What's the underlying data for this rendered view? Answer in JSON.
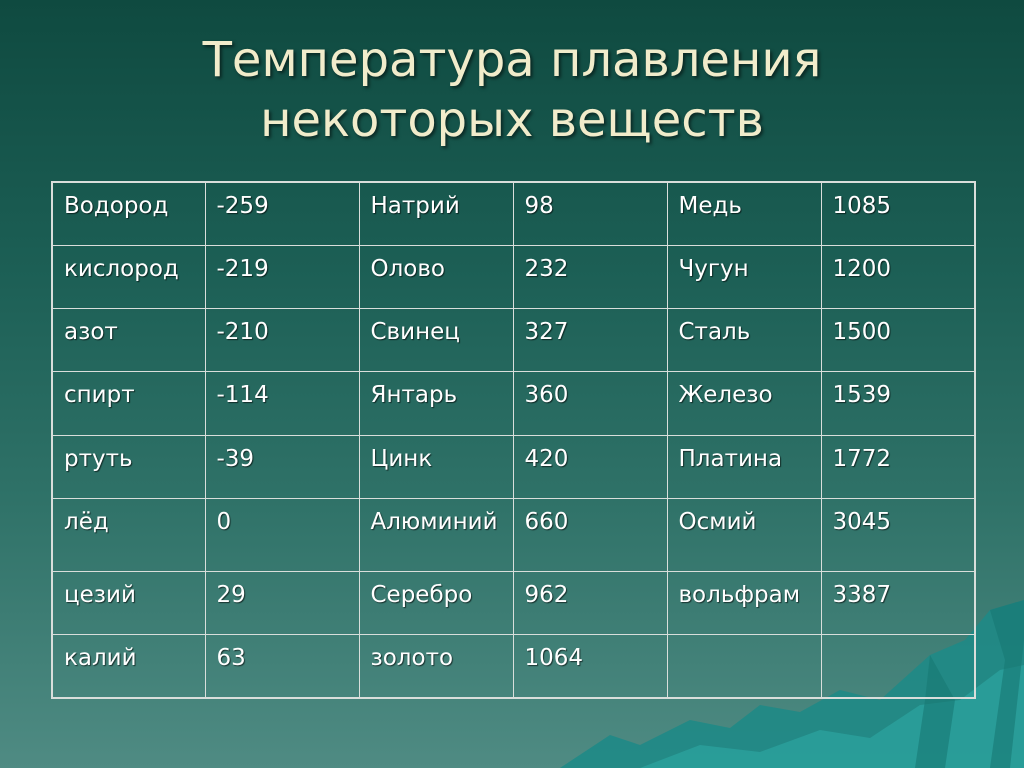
{
  "title": {
    "line1": "Температура плавления",
    "line2": "некоторых веществ"
  },
  "table": {
    "rows": [
      [
        "Водород",
        "-259",
        "Натрий",
        "98",
        "Медь",
        "1085"
      ],
      [
        "кислород",
        "-219",
        "Олово",
        "232",
        "Чугун",
        "1200"
      ],
      [
        "азот",
        "-210",
        "Свинец",
        "327",
        "Сталь",
        "1500"
      ],
      [
        "спирт",
        "-114",
        "Янтарь",
        "360",
        "Железо",
        "1539"
      ],
      [
        "ртуть",
        "-39",
        "Цинк",
        "420",
        "Платина",
        "1772"
      ],
      [
        "лёд",
        "0",
        "Алюминий",
        "660",
        "Осмий",
        "3045"
      ],
      [
        "цезий",
        "29",
        "Серебро",
        "962",
        "вольфрам",
        "3387"
      ],
      [
        "калий",
        "63",
        "золото",
        "1064",
        "",
        ""
      ]
    ]
  }
}
